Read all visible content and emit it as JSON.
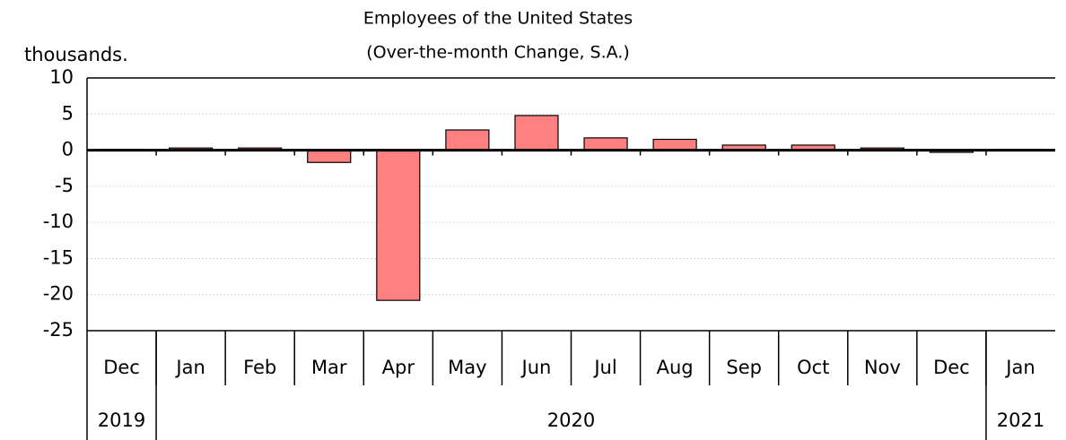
{
  "chart_data": {
    "type": "bar",
    "title": "Employees of the United States",
    "subtitle": "(Over-the-month Change, S.A.)",
    "y_axis_label": "thousands.",
    "categories": [
      "Dec",
      "Jan",
      "Feb",
      "Mar",
      "Apr",
      "May",
      "Jun",
      "Jul",
      "Aug",
      "Sep",
      "Oct",
      "Nov",
      "Dec",
      "Jan"
    ],
    "year_groups": [
      {
        "label": "2019",
        "count": 1
      },
      {
        "label": "2020",
        "count": 12
      },
      {
        "label": "2021",
        "count": 1
      }
    ],
    "values": [
      0.1,
      0.3,
      0.3,
      -1.7,
      -20.8,
      2.8,
      4.8,
      1.7,
      1.5,
      0.7,
      0.7,
      0.3,
      -0.3,
      0.1
    ],
    "color": "#ff8080",
    "ylim": [
      -25,
      10
    ],
    "yticks": [
      -25,
      -20,
      -15,
      -10,
      -5,
      0,
      5,
      10
    ],
    "grid": true
  }
}
